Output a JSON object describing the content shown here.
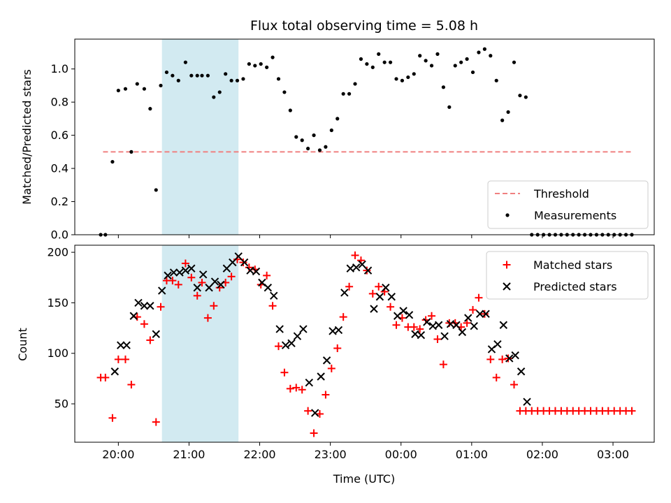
{
  "figure": {
    "title": "Flux total observing time = 5.08 h",
    "xlabel": "Time (UTC)",
    "x_tick_labels": [
      "20:00",
      "21:00",
      "22:00",
      "23:00",
      "00:00",
      "01:00",
      "02:00",
      "03:00"
    ],
    "shaded_window": {
      "start": "20:37",
      "end": "21:42",
      "color": "#add8e6"
    }
  },
  "colors": {
    "threshold": "#f08080",
    "measurements": "#000000",
    "matched": "#ff0000",
    "predicted": "#000000"
  },
  "chart_data": [
    {
      "type": "scatter",
      "panel": "top",
      "ylabel": "Matched/Predicted stars",
      "ylim": [
        0,
        1.18
      ],
      "y_tick_labels": [
        "0.0",
        "0.2",
        "0.4",
        "0.6",
        "0.8",
        "1.0"
      ],
      "legend": {
        "placement": "lower right",
        "entries": [
          "Threshold",
          "Measurements"
        ]
      },
      "threshold": {
        "name": "Threshold",
        "y": 0.5,
        "x_range": [
          "19:47",
          "03:17"
        ]
      },
      "series": [
        {
          "name": "Measurements",
          "points": [
            [
              "19:45",
              0.0
            ],
            [
              "19:49",
              0.0
            ],
            [
              "19:55",
              0.44
            ],
            [
              "20:00",
              0.87
            ],
            [
              "20:06",
              0.88
            ],
            [
              "20:11",
              0.5
            ],
            [
              "20:16",
              0.91
            ],
            [
              "20:22",
              0.88
            ],
            [
              "20:27",
              0.76
            ],
            [
              "20:32",
              0.27
            ],
            [
              "20:36",
              0.9
            ],
            [
              "20:41",
              0.98
            ],
            [
              "20:46",
              0.96
            ],
            [
              "20:51",
              0.93
            ],
            [
              "20:57",
              1.04
            ],
            [
              "21:02",
              0.96
            ],
            [
              "21:07",
              0.96
            ],
            [
              "21:11",
              0.96
            ],
            [
              "21:16",
              0.96
            ],
            [
              "21:21",
              0.83
            ],
            [
              "21:26",
              0.86
            ],
            [
              "21:31",
              0.97
            ],
            [
              "21:36",
              0.93
            ],
            [
              "21:41",
              0.93
            ],
            [
              "21:46",
              0.94
            ],
            [
              "21:51",
              1.03
            ],
            [
              "21:56",
              1.02
            ],
            [
              "22:01",
              1.03
            ],
            [
              "22:06",
              1.01
            ],
            [
              "22:11",
              1.07
            ],
            [
              "22:16",
              0.94
            ],
            [
              "22:21",
              0.86
            ],
            [
              "22:26",
              0.75
            ],
            [
              "22:31",
              0.59
            ],
            [
              "22:36",
              0.57
            ],
            [
              "22:41",
              0.52
            ],
            [
              "22:46",
              0.6
            ],
            [
              "22:51",
              0.51
            ],
            [
              "22:56",
              0.53
            ],
            [
              "23:01",
              0.63
            ],
            [
              "23:06",
              0.7
            ],
            [
              "23:11",
              0.85
            ],
            [
              "23:16",
              0.85
            ],
            [
              "23:21",
              0.91
            ],
            [
              "23:26",
              1.06
            ],
            [
              "23:31",
              1.03
            ],
            [
              "23:36",
              1.01
            ],
            [
              "23:41",
              1.09
            ],
            [
              "23:46",
              1.04
            ],
            [
              "23:51",
              1.04
            ],
            [
              "23:56",
              0.94
            ],
            [
              "00:01",
              0.93
            ],
            [
              "00:06",
              0.95
            ],
            [
              "00:11",
              0.97
            ],
            [
              "00:16",
              1.08
            ],
            [
              "00:21",
              1.05
            ],
            [
              "00:26",
              1.02
            ],
            [
              "00:31",
              1.09
            ],
            [
              "00:36",
              0.89
            ],
            [
              "00:41",
              0.77
            ],
            [
              "00:46",
              1.02
            ],
            [
              "00:51",
              1.04
            ],
            [
              "00:56",
              1.06
            ],
            [
              "01:01",
              0.98
            ],
            [
              "01:06",
              1.1
            ],
            [
              "01:11",
              1.12
            ],
            [
              "01:16",
              1.08
            ],
            [
              "01:21",
              0.93
            ],
            [
              "01:26",
              0.69
            ],
            [
              "01:31",
              0.74
            ],
            [
              "01:36",
              1.04
            ],
            [
              "01:41",
              0.84
            ],
            [
              "01:46",
              0.83
            ],
            [
              "01:51",
              0.0
            ],
            [
              "01:56",
              0.0
            ],
            [
              "02:01",
              0.0
            ],
            [
              "02:06",
              0.0
            ],
            [
              "02:11",
              0.0
            ],
            [
              "02:16",
              0.0
            ],
            [
              "02:21",
              0.0
            ],
            [
              "02:26",
              0.0
            ],
            [
              "02:31",
              0.0
            ],
            [
              "02:36",
              0.0
            ],
            [
              "02:41",
              0.0
            ],
            [
              "02:46",
              0.0
            ],
            [
              "02:51",
              0.0
            ],
            [
              "02:56",
              0.0
            ],
            [
              "03:01",
              0.0
            ],
            [
              "03:06",
              0.0
            ],
            [
              "03:11",
              0.0
            ],
            [
              "03:16",
              0.0
            ]
          ]
        }
      ]
    },
    {
      "type": "scatter",
      "panel": "bottom",
      "ylabel": "Count",
      "ylim": [
        12,
        207
      ],
      "y_tick_labels": [
        "50",
        "100",
        "150",
        "200"
      ],
      "legend": {
        "placement": "upper right",
        "entries": [
          "Matched stars",
          "Predicted stars"
        ]
      },
      "series": [
        {
          "name": "Matched stars",
          "marker": "plus",
          "points": [
            [
              "19:45",
              76
            ],
            [
              "19:49",
              76
            ],
            [
              "19:55",
              36
            ],
            [
              "20:00",
              94
            ],
            [
              "20:06",
              94
            ],
            [
              "20:11",
              69
            ],
            [
              "20:16",
              136
            ],
            [
              "20:22",
              129
            ],
            [
              "20:27",
              113
            ],
            [
              "20:32",
              32
            ],
            [
              "20:36",
              146
            ],
            [
              "20:41",
              172
            ],
            [
              "20:46",
              172
            ],
            [
              "20:51",
              168
            ],
            [
              "20:57",
              189
            ],
            [
              "21:02",
              175
            ],
            [
              "21:07",
              157
            ],
            [
              "21:11",
              170
            ],
            [
              "21:16",
              135
            ],
            [
              "21:21",
              147
            ],
            [
              "21:26",
              165
            ],
            [
              "21:31",
              170
            ],
            [
              "21:36",
              176
            ],
            [
              "21:41",
              193
            ],
            [
              "21:46",
              190
            ],
            [
              "21:51",
              185
            ],
            [
              "21:56",
              183
            ],
            [
              "22:01",
              168
            ],
            [
              "22:06",
              177
            ],
            [
              "22:11",
              147
            ],
            [
              "22:16",
              107
            ],
            [
              "22:21",
              81
            ],
            [
              "22:26",
              65
            ],
            [
              "22:31",
              66
            ],
            [
              "22:36",
              64
            ],
            [
              "22:41",
              43
            ],
            [
              "22:46",
              21
            ],
            [
              "22:51",
              40
            ],
            [
              "22:56",
              59
            ],
            [
              "23:01",
              85
            ],
            [
              "23:06",
              105
            ],
            [
              "23:11",
              136
            ],
            [
              "23:16",
              166
            ],
            [
              "23:21",
              197
            ],
            [
              "23:26",
              192
            ],
            [
              "23:31",
              182
            ],
            [
              "23:36",
              159
            ],
            [
              "23:41",
              166
            ],
            [
              "23:46",
              161
            ],
            [
              "23:51",
              146
            ],
            [
              "23:56",
              128
            ],
            [
              "00:01",
              135
            ],
            [
              "00:06",
              126
            ],
            [
              "00:11",
              126
            ],
            [
              "00:16",
              124
            ],
            [
              "00:21",
              133
            ],
            [
              "00:26",
              137
            ],
            [
              "00:31",
              114
            ],
            [
              "00:36",
              89
            ],
            [
              "00:41",
              130
            ],
            [
              "00:46",
              130
            ],
            [
              "00:51",
              126
            ],
            [
              "00:56",
              130
            ],
            [
              "01:01",
              143
            ],
            [
              "01:06",
              155
            ],
            [
              "01:11",
              139
            ],
            [
              "01:16",
              94
            ],
            [
              "01:21",
              76
            ],
            [
              "01:26",
              94
            ],
            [
              "01:31",
              95
            ],
            [
              "01:36",
              69
            ],
            [
              "01:41",
              43
            ],
            [
              "01:46",
              43
            ],
            [
              "01:51",
              43
            ],
            [
              "01:56",
              43
            ],
            [
              "02:01",
              43
            ],
            [
              "02:06",
              43
            ],
            [
              "02:11",
              43
            ],
            [
              "02:16",
              43
            ],
            [
              "02:21",
              43
            ],
            [
              "02:26",
              43
            ],
            [
              "02:31",
              43
            ],
            [
              "02:36",
              43
            ],
            [
              "02:41",
              43
            ],
            [
              "02:46",
              43
            ],
            [
              "02:51",
              43
            ],
            [
              "02:56",
              43
            ],
            [
              "03:01",
              43
            ],
            [
              "03:06",
              43
            ],
            [
              "03:11",
              43
            ],
            [
              "03:16",
              43
            ]
          ]
        },
        {
          "name": "Predicted stars",
          "marker": "x",
          "points": [
            [
              "19:57",
              82
            ],
            [
              "20:02",
              108
            ],
            [
              "20:07",
              108
            ],
            [
              "20:13",
              137
            ],
            [
              "20:17",
              150
            ],
            [
              "20:22",
              147
            ],
            [
              "20:27",
              147
            ],
            [
              "20:32",
              119
            ],
            [
              "20:37",
              162
            ],
            [
              "20:42",
              177
            ],
            [
              "20:47",
              180
            ],
            [
              "20:52",
              180
            ],
            [
              "20:57",
              182
            ],
            [
              "21:02",
              184
            ],
            [
              "21:07",
              165
            ],
            [
              "21:12",
              178
            ],
            [
              "21:17",
              165
            ],
            [
              "21:22",
              171
            ],
            [
              "21:27",
              168
            ],
            [
              "21:32",
              184
            ],
            [
              "21:37",
              190
            ],
            [
              "21:42",
              196
            ],
            [
              "21:47",
              190
            ],
            [
              "21:52",
              182
            ],
            [
              "21:57",
              181
            ],
            [
              "22:02",
              170
            ],
            [
              "22:07",
              165
            ],
            [
              "22:12",
              157
            ],
            [
              "22:17",
              124
            ],
            [
              "22:22",
              108
            ],
            [
              "22:27",
              110
            ],
            [
              "22:32",
              117
            ],
            [
              "22:37",
              124
            ],
            [
              "22:42",
              71
            ],
            [
              "22:47",
              41
            ],
            [
              "22:52",
              77
            ],
            [
              "22:57",
              93
            ],
            [
              "23:02",
              122
            ],
            [
              "23:07",
              123
            ],
            [
              "23:12",
              160
            ],
            [
              "23:17",
              184
            ],
            [
              "23:22",
              185
            ],
            [
              "23:27",
              188
            ],
            [
              "23:32",
              182
            ],
            [
              "23:37",
              144
            ],
            [
              "23:42",
              156
            ],
            [
              "23:47",
              165
            ],
            [
              "23:52",
              156
            ],
            [
              "23:57",
              137
            ],
            [
              "00:02",
              142
            ],
            [
              "00:07",
              138
            ],
            [
              "00:12",
              119
            ],
            [
              "00:17",
              118
            ],
            [
              "00:22",
              131
            ],
            [
              "00:27",
              127
            ],
            [
              "00:32",
              128
            ],
            [
              "00:37",
              117
            ],
            [
              "00:42",
              129
            ],
            [
              "00:47",
              128
            ],
            [
              "00:52",
              121
            ],
            [
              "00:57",
              135
            ],
            [
              "01:02",
              127
            ],
            [
              "01:07",
              139
            ],
            [
              "01:12",
              139
            ],
            [
              "01:17",
              104
            ],
            [
              "01:22",
              109
            ],
            [
              "01:27",
              128
            ],
            [
              "01:32",
              95
            ],
            [
              "01:37",
              98
            ],
            [
              "01:42",
              82
            ],
            [
              "01:47",
              52
            ]
          ]
        }
      ]
    }
  ]
}
